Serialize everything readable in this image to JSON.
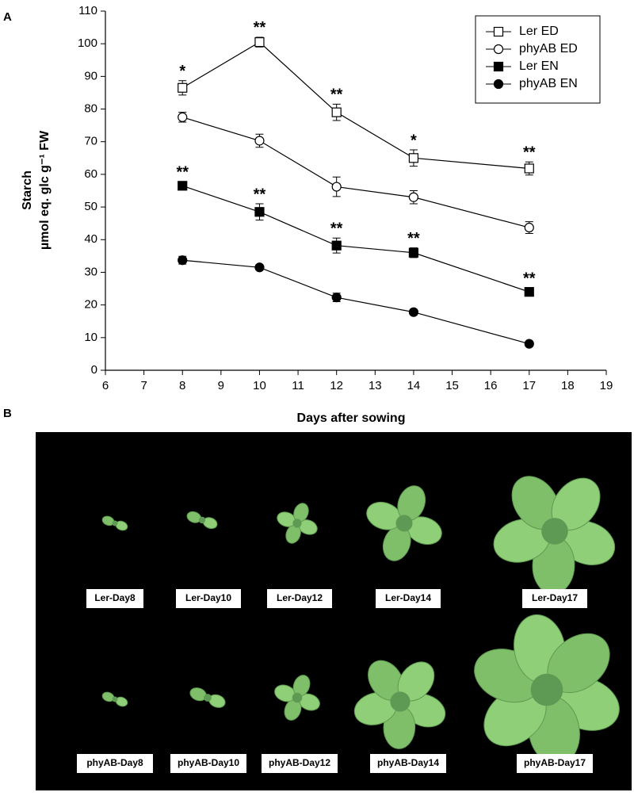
{
  "panel_labels": [
    "A",
    "B"
  ],
  "chart_data": {
    "type": "line",
    "xlabel": "Days after sowing",
    "ylabel": "Starch",
    "ylabel2": "µmol eq. glc g⁻¹ FW",
    "x": [
      8,
      10,
      12,
      14,
      17
    ],
    "xlim": [
      6,
      19
    ],
    "xticks": [
      6,
      7,
      8,
      9,
      10,
      11,
      12,
      13,
      14,
      15,
      16,
      17,
      18,
      19
    ],
    "ylim": [
      0,
      110
    ],
    "yticks": [
      0,
      10,
      20,
      30,
      40,
      50,
      60,
      70,
      80,
      90,
      100,
      110
    ],
    "legend": "upper right",
    "series": [
      {
        "name": "Ler ED",
        "color": "#000000",
        "marker": "square",
        "filled": false,
        "values": [
          86.5,
          100.5,
          79,
          65,
          61.8
        ],
        "errors": [
          2.2,
          1.5,
          2.5,
          2.5,
          2
        ],
        "significance": [
          "*",
          "**",
          "**",
          "*",
          "**"
        ]
      },
      {
        "name": "phyAB ED",
        "color": "#000000",
        "marker": "circle",
        "filled": false,
        "values": [
          77.5,
          70.3,
          56.2,
          53,
          43.7
        ],
        "errors": [
          1.5,
          2,
          3,
          2,
          1.8
        ]
      },
      {
        "name": "Ler EN",
        "color": "#000000",
        "marker": "square",
        "filled": true,
        "values": [
          56.5,
          48.5,
          38.2,
          36,
          24
        ],
        "errors": [
          1.2,
          2.5,
          2.3,
          1.5,
          1.2
        ],
        "significance": [
          "**",
          "**",
          "**",
          "**",
          "**"
        ]
      },
      {
        "name": "phyAB EN",
        "color": "#000000",
        "marker": "circle",
        "filled": true,
        "values": [
          33.7,
          31.5,
          22.3,
          17.8,
          8.1
        ],
        "errors": [
          1.2,
          0.8,
          1.3,
          0.8,
          0.8
        ]
      }
    ]
  },
  "photo_labels": [
    [
      "Ler-Day8",
      "Ler-Day10",
      "Ler-Day12",
      "Ler-Day14",
      "Ler-Day17"
    ],
    [
      "phyAB-Day8",
      "phyAB-Day10",
      "phyAB-Day12",
      "phyAB-Day14",
      "phyAB-Day17"
    ]
  ]
}
